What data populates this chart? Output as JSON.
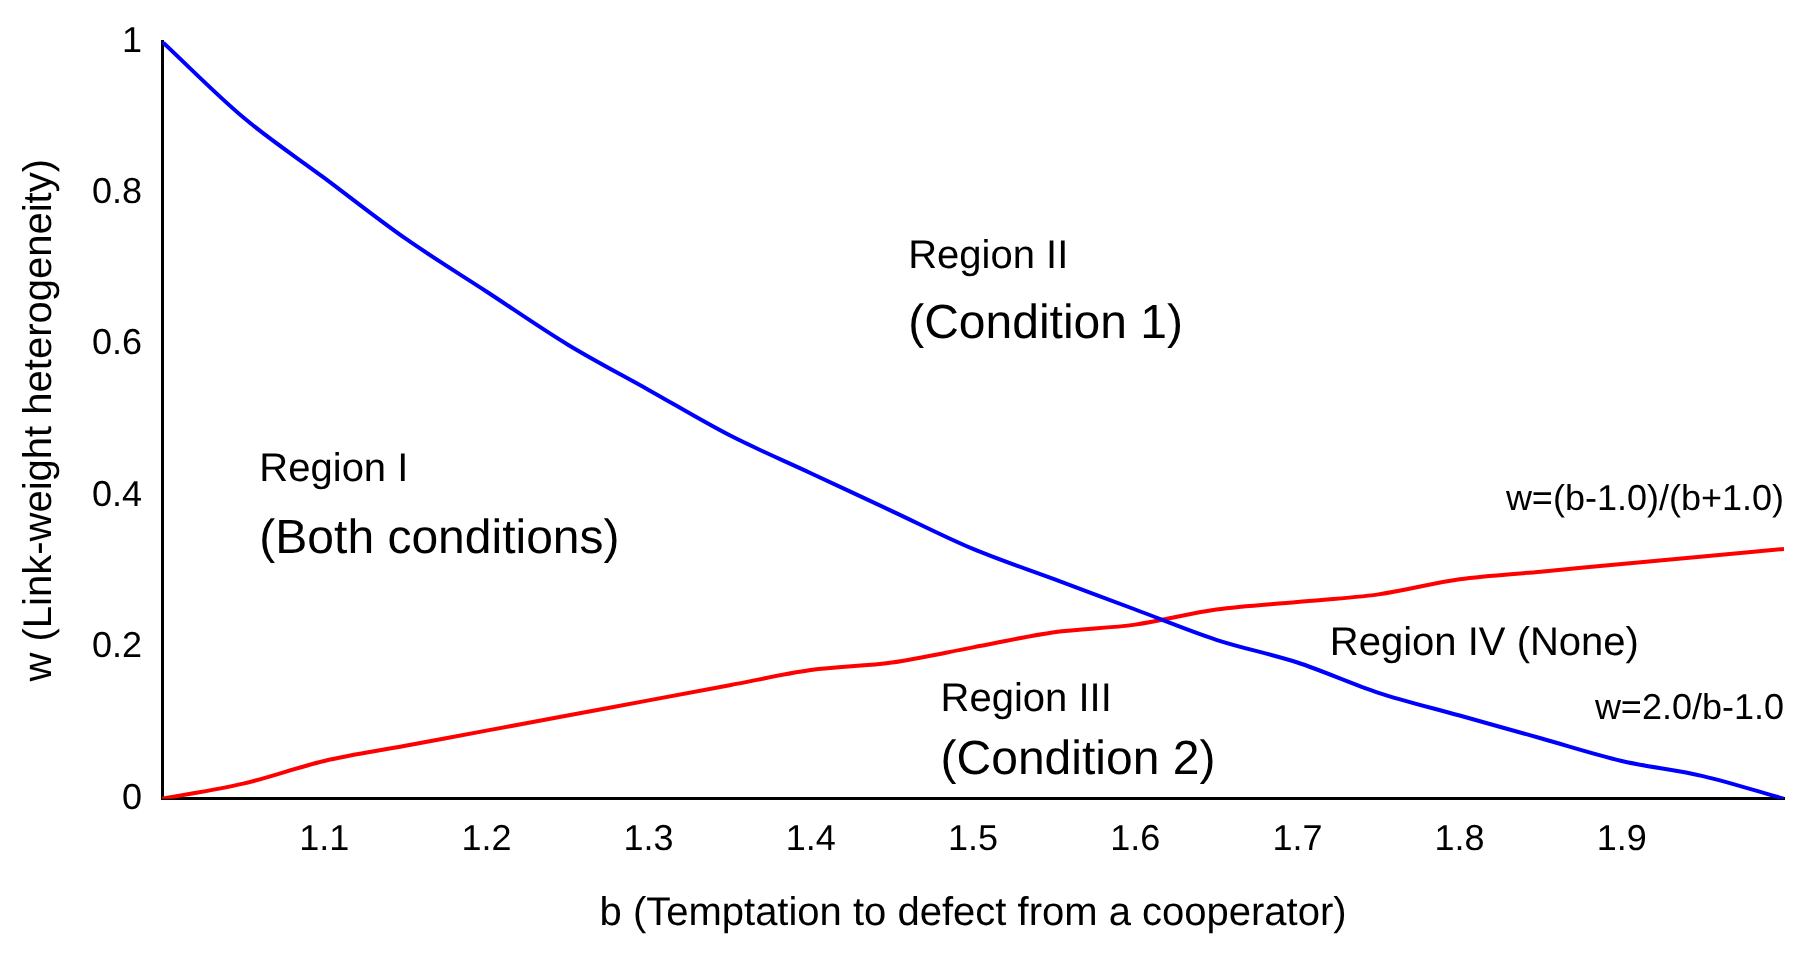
{
  "chart_data": {
    "type": "line",
    "xlabel": "b (Temptation to defect from a cooperator)",
    "ylabel": "w (Link-weight heterogeneity)",
    "x": [
      1,
      1.05,
      1.1,
      1.15,
      1.2,
      1.25,
      1.3,
      1.35,
      1.4,
      1.45,
      1.5,
      1.55,
      1.6,
      1.65,
      1.7,
      1.75,
      1.8,
      1.85,
      1.9,
      1.95,
      2
    ],
    "series": [
      {
        "name": "w=2.0/b-1.0",
        "color": "#0000ff",
        "values": [
          1,
          0.9,
          0.82,
          0.74,
          0.67,
          0.6,
          0.54,
          0.48,
          0.43,
          0.38,
          0.33,
          0.29,
          0.25,
          0.21,
          0.18,
          0.14,
          0.11,
          0.08,
          0.05,
          0.03,
          0
        ]
      },
      {
        "name": "w=(b-1.0)/(b+1.0)",
        "color": "#ff0000",
        "values": [
          0,
          0.02,
          0.05,
          0.07,
          0.09,
          0.11,
          0.13,
          0.15,
          0.17,
          0.18,
          0.2,
          0.22,
          0.23,
          0.25,
          0.26,
          0.27,
          0.29,
          0.3,
          0.31,
          0.32,
          0.33
        ]
      }
    ],
    "xlim": [
      1,
      2
    ],
    "xticks": [
      1.1,
      1.2,
      1.3,
      1.4,
      1.5,
      1.6,
      1.7,
      1.8,
      1.9
    ],
    "ylim": [
      0,
      1
    ],
    "yticks": [
      0,
      0.2,
      0.4,
      0.6,
      0.8,
      1
    ],
    "annotations": [
      "Region I",
      "(Both conditions)",
      "Region II",
      "(Condition 1)",
      "Region III",
      "(Condition 2)",
      "Region IV (None)"
    ],
    "grid": false,
    "legend": false,
    "marker": "none",
    "line_style": "solid"
  }
}
